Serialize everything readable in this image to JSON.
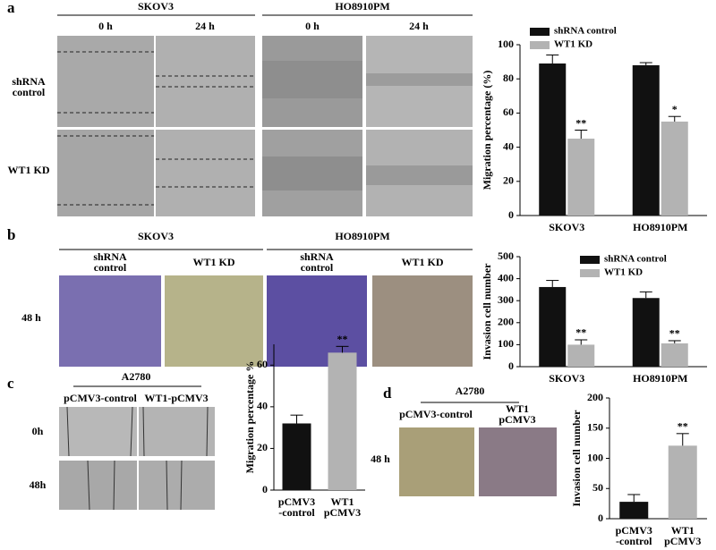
{
  "panels": {
    "a": {
      "label": "a",
      "groups": [
        "SKOV3",
        "HO8910PM"
      ],
      "timepoints": [
        "0 h",
        "24 h",
        "0 h",
        "24 h"
      ],
      "rows": [
        [
          "shRNA",
          "control"
        ],
        [
          "WT1 KD"
        ]
      ]
    },
    "b": {
      "label": "b",
      "groups": [
        "SKOV3",
        "HO8910PM"
      ],
      "columns": [
        [
          "shRNA",
          "control"
        ],
        [
          "WT1 KD"
        ],
        [
          "shRNA",
          "control"
        ],
        [
          "WT1 KD"
        ]
      ],
      "row": "48 h"
    },
    "c": {
      "label": "c",
      "group": "A2780",
      "columns": [
        "pCMV3-control",
        "WT1-pCMV3"
      ],
      "rows": [
        "0h",
        "48h"
      ]
    },
    "d": {
      "label": "d",
      "group": "A2780",
      "columns": [
        [
          "pCMV3-control"
        ],
        [
          "WT1",
          "pCMV3"
        ]
      ],
      "row": "48 h"
    }
  },
  "chart_data": [
    {
      "type": "bar",
      "y_label": "Migration percentage (%)",
      "categories": [
        [
          "SKOV3"
        ],
        [
          "HO8910PM"
        ]
      ],
      "series": [
        {
          "name": "shRNA control",
          "color": "#111111",
          "values": [
            89,
            88
          ],
          "errors": [
            5,
            1.5
          ]
        },
        {
          "name": "WT1 KD",
          "color": "#b3b3b3",
          "values": [
            45,
            55
          ],
          "errors": [
            5,
            3
          ],
          "annotations": [
            "**",
            "*"
          ]
        }
      ],
      "ylim": [
        0,
        100
      ],
      "yticks": [
        0,
        20,
        40,
        60,
        80,
        100
      ],
      "legend": "top"
    },
    {
      "type": "bar",
      "y_label": "Invasion cell number",
      "categories": [
        [
          "SKOV3"
        ],
        [
          "HO8910PM"
        ]
      ],
      "series": [
        {
          "name": "shRNA control",
          "color": "#111111",
          "values": [
            362,
            312
          ],
          "errors": [
            30,
            28
          ]
        },
        {
          "name": "WT1 KD",
          "color": "#b3b3b3",
          "values": [
            100,
            106
          ],
          "errors": [
            22,
            12
          ],
          "annotations": [
            "**",
            "**"
          ]
        }
      ],
      "ylim": [
        0,
        500
      ],
      "yticks": [
        0,
        100,
        200,
        300,
        400,
        500
      ],
      "legend": "top"
    },
    {
      "type": "bar",
      "y_label": "Migration percentage %",
      "categories": [
        [
          "pCMV3",
          "-control"
        ],
        [
          "WT1",
          "pCMV3"
        ]
      ],
      "values": [
        32,
        66
      ],
      "errors": [
        4,
        3
      ],
      "colors": [
        "#111111",
        "#b3b3b3"
      ],
      "annotations": [
        null,
        "**"
      ],
      "ylim": [
        0,
        70
      ],
      "yticks": [
        0,
        20,
        40,
        60
      ]
    },
    {
      "type": "bar",
      "y_label": "Invasion cell number",
      "categories": [
        [
          "pCMV3",
          "-control"
        ],
        [
          "WT1",
          "pCMV3"
        ]
      ],
      "values": [
        28,
        121
      ],
      "errors": [
        12,
        20
      ],
      "colors": [
        "#111111",
        "#b3b3b3"
      ],
      "annotations": [
        null,
        "**"
      ],
      "ylim": [
        0,
        200
      ],
      "yticks": [
        0,
        50,
        100,
        150,
        200
      ]
    }
  ]
}
